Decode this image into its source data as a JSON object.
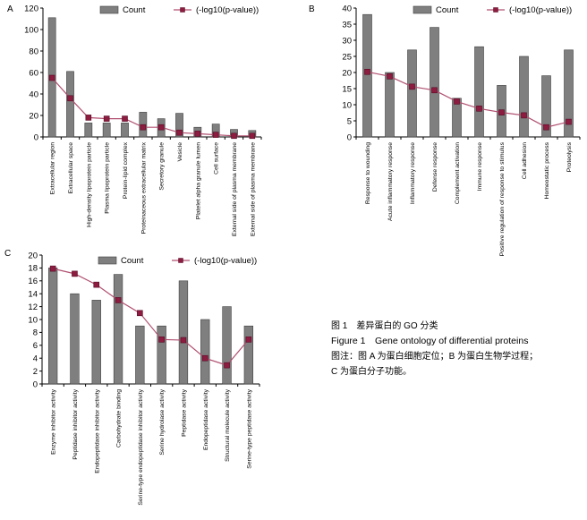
{
  "legend_labels": {
    "bar": "Count",
    "line": "(-log10(p-value))"
  },
  "colors": {
    "bar_fill": "#7f7f7f",
    "bar_stroke": "#404040",
    "line": "#b05070",
    "marker": "#8c1c40",
    "axis": "#000000"
  },
  "caption": {
    "title": "图 1　差异蛋白的 GO 分类",
    "title_en": "Figure 1　Gene ontology of differential proteins",
    "note_1": "图注：图 A 为蛋白细胞定位；B 为蛋白生物学过程；",
    "note_2": "C 为蛋白分子功能。"
  },
  "chart_data": [
    {
      "panel": "A",
      "type": "bar",
      "categories": [
        "Extracellular region",
        "Extracellular space",
        "High-density lipoprotein particle",
        "Plasma lipoprotein particle",
        "Protein-lipid complex",
        "Proteinaceous extracellular matrix",
        "Secretory granule",
        "Vesicle",
        "Platelet alpha granule lumen",
        "Cell surface",
        "External side of plasma membrane",
        "External side of plasma membrane"
      ],
      "series": [
        {
          "name": "Count",
          "type": "bar",
          "values": [
            111,
            61,
            13,
            13,
            13,
            23,
            17,
            22,
            9,
            12,
            7,
            6
          ]
        },
        {
          "name": "(-log10(p-value))",
          "type": "line",
          "values": [
            55,
            36,
            18,
            17,
            17,
            9,
            9,
            4,
            3,
            2,
            1,
            1
          ]
        }
      ],
      "ylim": [
        0,
        120
      ],
      "yticks": [
        0,
        20,
        40,
        60,
        80,
        100,
        120
      ],
      "legend_position": "top"
    },
    {
      "panel": "B",
      "type": "bar",
      "categories": [
        "Response to wounding",
        "Acute inflammatory response",
        "Inflammatory response",
        "Defense response",
        "Complement activation",
        "Immune response",
        "Positive regulation of response to stimulus",
        "Cell adhesion",
        "Homeostatic process",
        "Proteolysis"
      ],
      "series": [
        {
          "name": "Count",
          "type": "bar",
          "values": [
            38,
            20,
            27,
            34,
            12,
            28,
            16,
            25,
            19,
            27
          ]
        },
        {
          "name": "(-log10(p-value))",
          "type": "line",
          "values": [
            20.2,
            18.8,
            15.6,
            14.5,
            11,
            8.8,
            7.6,
            6.7,
            3,
            4.7
          ]
        }
      ],
      "ylim": [
        0,
        40
      ],
      "yticks": [
        0,
        5,
        10,
        15,
        20,
        25,
        30,
        35,
        40
      ],
      "legend_position": "top"
    },
    {
      "panel": "C",
      "type": "bar",
      "categories": [
        "Enzyme inhibitor activity",
        "Peptidase inhibitor activity",
        "Endopeptidase inhibitor activity",
        "Carbohydrate binding",
        "Serine-type endopeptidase inhibitor activity",
        "Serine hydrolase activity",
        "Peptidase activity",
        "Endopeptidase activity",
        "Structural molecule activity",
        "Serine-type peptidase activity"
      ],
      "series": [
        {
          "name": "Count",
          "type": "bar",
          "values": [
            18,
            14,
            13,
            17,
            9,
            9,
            16,
            10,
            12,
            9
          ]
        },
        {
          "name": "(-log10(p-value))",
          "type": "line",
          "values": [
            17.9,
            17.1,
            15.4,
            13,
            11,
            6.9,
            6.8,
            4,
            2.9,
            6.9
          ]
        }
      ],
      "ylim": [
        0,
        20
      ],
      "yticks": [
        0,
        2,
        4,
        6,
        8,
        10,
        12,
        14,
        16,
        18,
        20
      ],
      "legend_position": "top"
    }
  ]
}
